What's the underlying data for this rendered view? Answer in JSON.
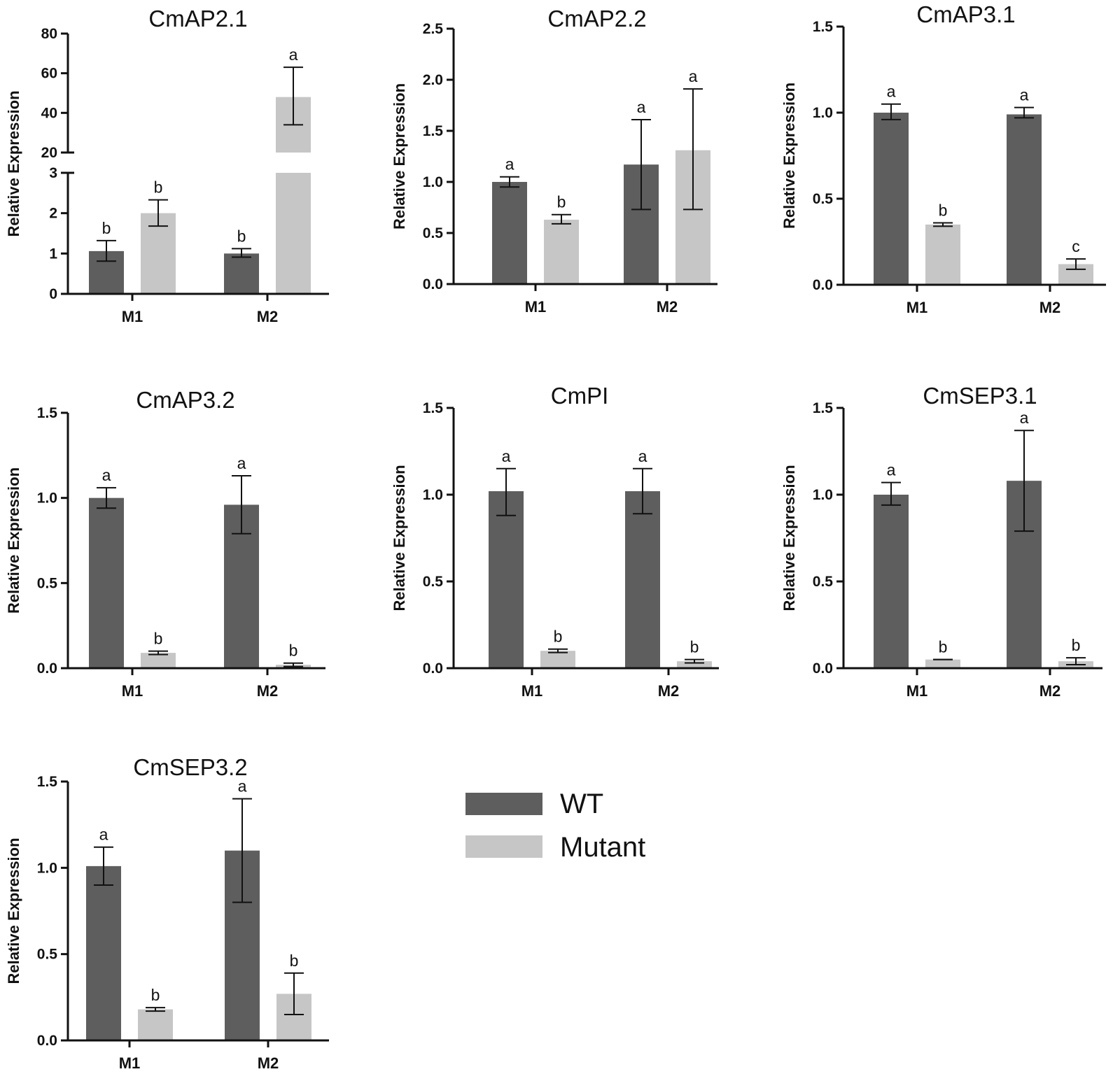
{
  "legend": {
    "position": "center",
    "entries": [
      {
        "label": "WT",
        "color": "#5e5e5e"
      },
      {
        "label": "Mutant",
        "color": "#c6c6c6"
      }
    ]
  },
  "chart_data": [
    {
      "type": "bar",
      "title": "CmAP2.1",
      "ylabel": "Relative Expression",
      "categories": [
        "M1",
        "M2"
      ],
      "axis_break": {
        "lower_range": [
          0,
          3
        ],
        "upper_range": [
          20,
          80
        ],
        "lower_ticks": [
          "0",
          "1",
          "2",
          "3"
        ],
        "upper_ticks": [
          "20",
          "40",
          "60",
          "80"
        ]
      },
      "series": [
        {
          "name": "WT",
          "color": "#5e5e5e",
          "values": [
            1.06,
            1.0
          ],
          "err_low": [
            0.81,
            0.91
          ],
          "err_high": [
            1.32,
            1.12
          ],
          "sig": [
            "b",
            "b"
          ]
        },
        {
          "name": "Mutant",
          "color": "#c6c6c6",
          "values": [
            2.0,
            48.0
          ],
          "err_low": [
            1.68,
            34.0
          ],
          "err_high": [
            2.33,
            63.0
          ],
          "sig": [
            "b",
            "a"
          ]
        }
      ]
    },
    {
      "type": "bar",
      "title": "CmAP2.2",
      "ylabel": "Relative Expression",
      "categories": [
        "M1",
        "M2"
      ],
      "ylim": [
        0,
        2.5
      ],
      "yticks": [
        "0.0",
        "0.5",
        "1.0",
        "1.5",
        "2.0",
        "2.5"
      ],
      "series": [
        {
          "name": "WT",
          "color": "#5e5e5e",
          "values": [
            1.0,
            1.17
          ],
          "err_low": [
            0.95,
            0.73
          ],
          "err_high": [
            1.05,
            1.61
          ],
          "sig": [
            "a",
            "a"
          ]
        },
        {
          "name": "Mutant",
          "color": "#c6c6c6",
          "values": [
            0.63,
            1.31
          ],
          "err_low": [
            0.59,
            0.73
          ],
          "err_high": [
            0.68,
            1.91
          ],
          "sig": [
            "b",
            "a"
          ]
        }
      ]
    },
    {
      "type": "bar",
      "title": "CmAP3.1",
      "ylabel": "Relative Expression",
      "categories": [
        "M1",
        "M2"
      ],
      "ylim": [
        0,
        1.5
      ],
      "yticks": [
        "0.0",
        "0.5",
        "1.0",
        "1.5"
      ],
      "series": [
        {
          "name": "WT",
          "color": "#5e5e5e",
          "values": [
            1.0,
            0.99
          ],
          "err_low": [
            0.96,
            0.97
          ],
          "err_high": [
            1.05,
            1.03
          ],
          "sig": [
            "a",
            "a"
          ]
        },
        {
          "name": "Mutant",
          "color": "#c6c6c6",
          "values": [
            0.35,
            0.12
          ],
          "err_low": [
            0.34,
            0.09
          ],
          "err_high": [
            0.36,
            0.15
          ],
          "sig": [
            "b",
            "c"
          ]
        }
      ]
    },
    {
      "type": "bar",
      "title": "CmAP3.2",
      "ylabel": "Relative Expression",
      "categories": [
        "M1",
        "M2"
      ],
      "ylim": [
        0,
        1.5
      ],
      "yticks": [
        "0.0",
        "0.5",
        "1.0",
        "1.5"
      ],
      "series": [
        {
          "name": "WT",
          "color": "#5e5e5e",
          "values": [
            1.0,
            0.96
          ],
          "err_low": [
            0.94,
            0.79
          ],
          "err_high": [
            1.06,
            1.13
          ],
          "sig": [
            "a",
            "a"
          ]
        },
        {
          "name": "Mutant",
          "color": "#c6c6c6",
          "values": [
            0.09,
            0.02
          ],
          "err_low": [
            0.08,
            0.01
          ],
          "err_high": [
            0.1,
            0.03
          ],
          "sig": [
            "b",
            "b"
          ]
        }
      ]
    },
    {
      "type": "bar",
      "title": "CmPI",
      "ylabel": "Relative Expression",
      "categories": [
        "M1",
        "M2"
      ],
      "ylim": [
        0,
        1.5
      ],
      "yticks": [
        "0.0",
        "0.5",
        "1.0",
        "1.5"
      ],
      "series": [
        {
          "name": "WT",
          "color": "#5e5e5e",
          "values": [
            1.02,
            1.02
          ],
          "err_low": [
            0.88,
            0.89
          ],
          "err_high": [
            1.15,
            1.15
          ],
          "sig": [
            "a",
            "a"
          ]
        },
        {
          "name": "Mutant",
          "color": "#c6c6c6",
          "values": [
            0.1,
            0.04
          ],
          "err_low": [
            0.09,
            0.03
          ],
          "err_high": [
            0.11,
            0.05
          ],
          "sig": [
            "b",
            "b"
          ]
        }
      ]
    },
    {
      "type": "bar",
      "title": "CmSEP3.1",
      "ylabel": "Relative Expression",
      "categories": [
        "M1",
        "M2"
      ],
      "ylim": [
        0,
        1.5
      ],
      "yticks": [
        "0.0",
        "0.5",
        "1.0",
        "1.5"
      ],
      "series": [
        {
          "name": "WT",
          "color": "#5e5e5e",
          "values": [
            1.0,
            1.08
          ],
          "err_low": [
            0.94,
            0.79
          ],
          "err_high": [
            1.07,
            1.37
          ],
          "sig": [
            "a",
            "a"
          ]
        },
        {
          "name": "Mutant",
          "color": "#c6c6c6",
          "values": [
            0.05,
            0.04
          ],
          "err_low": [
            0.05,
            0.02
          ],
          "err_high": [
            0.05,
            0.06
          ],
          "sig": [
            "b",
            "b"
          ]
        }
      ]
    },
    {
      "type": "bar",
      "title": "CmSEP3.2",
      "ylabel": "Relative Expression",
      "categories": [
        "M1",
        "M2"
      ],
      "ylim": [
        0,
        1.5
      ],
      "yticks": [
        "0.0",
        "0.5",
        "1.0",
        "1.5"
      ],
      "series": [
        {
          "name": "WT",
          "color": "#5e5e5e",
          "values": [
            1.01,
            1.1
          ],
          "err_low": [
            0.9,
            0.8
          ],
          "err_high": [
            1.12,
            1.4
          ],
          "sig": [
            "a",
            "a"
          ]
        },
        {
          "name": "Mutant",
          "color": "#c6c6c6",
          "values": [
            0.18,
            0.27
          ],
          "err_low": [
            0.17,
            0.15
          ],
          "err_high": [
            0.19,
            0.39
          ],
          "sig": [
            "b",
            "b"
          ]
        }
      ]
    }
  ]
}
